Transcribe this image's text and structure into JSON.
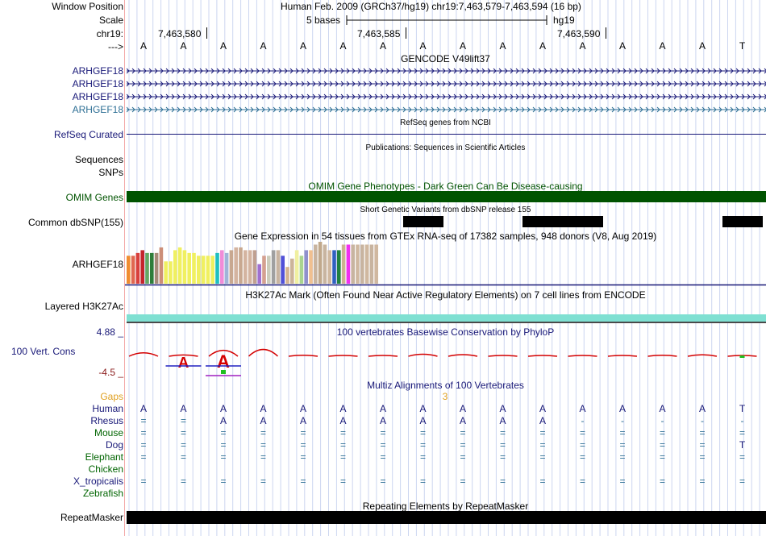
{
  "colors": {
    "navy": "#181878",
    "teal": "#2e6f95",
    "green": "#006400",
    "omim": "#005300",
    "orange": "#e0a020",
    "darkred": "#8a1a1a",
    "cyan": "#7fe0d2",
    "grid": "#ccd6f0",
    "red": "#d40000"
  },
  "header": {
    "position_label": "Window Position",
    "position_value": "Human Feb. 2009 (GRCh37/hg19)   chr19:7,463,579-7,463,594 (16 bp)",
    "scale_label": "Scale",
    "scale_text": "5 bases",
    "scale_db": "hg19",
    "chrom_label": "chr19:",
    "ticks": [
      "7,463,580",
      "7,463,585",
      "7,463,590"
    ],
    "strand_label": "--->",
    "bases": [
      "A",
      "A",
      "A",
      "A",
      "A",
      "A",
      "A",
      "A",
      "A",
      "A",
      "A",
      "A",
      "A",
      "A",
      "A",
      "T"
    ]
  },
  "tracks": {
    "gencode_title": "GENCODE V49lift37",
    "gencode_genes": [
      "ARHGEF18",
      "ARHGEF18",
      "ARHGEF18",
      "ARHGEF18"
    ],
    "refseq_title": "RefSeq genes from NCBI",
    "refseq_label": "RefSeq Curated",
    "pubs_title": "Publications: Sequences in Scientific Articles",
    "pubs_label": "Sequences",
    "snps_label": "SNPs",
    "omim_title": "OMIM Gene Phenotypes - Dark Green Can Be Disease-causing",
    "omim_label": "OMIM Genes",
    "dbsnp_title": "Short Genetic Variants from dbSNP release 155",
    "dbsnp_label": "Common dbSNP(155)",
    "gtex_title": "Gene Expression in 54 tissues from GTEx RNA-seq of 17382 samples, 948 donors (V8, Aug 2019)",
    "gtex_label": "ARHGEF18",
    "h3k_title": "H3K27Ac Mark (Often Found Near Active Regulatory Elements) on 7 cell lines from ENCODE",
    "h3k_label": "Layered H3K27Ac",
    "cons_title": "100 vertebrates Basewise Conservation by PhyloP",
    "cons_label": "100 Vert. Cons",
    "cons_max": "4.88 _",
    "cons_min": "-4.5 _",
    "multiz_title": "Multiz Alignments of 100 Vertebrates",
    "gaps_label": "Gaps",
    "gaps_value": "3",
    "repeat_title": "Repeating Elements by RepeatMasker",
    "repeat_label": "RepeatMasker"
  },
  "chart_data": {
    "type": "bar",
    "title": "Gene Expression in 54 tissues from GTEx RNA-seq of 17382 samples, 948 donors (V8, Aug 2019)",
    "values": [
      10,
      10,
      11,
      12,
      11,
      11,
      11,
      13,
      8,
      8,
      12,
      13,
      12,
      11,
      11,
      10,
      10,
      10,
      10,
      11,
      12,
      11,
      12,
      13,
      13,
      12,
      12,
      12,
      7,
      10,
      10,
      12,
      12,
      10,
      6,
      9,
      12,
      10,
      12,
      12,
      14,
      15,
      14,
      12,
      12,
      12,
      14,
      14,
      14,
      14,
      14,
      14,
      14,
      14
    ],
    "colors": [
      "#f08c30",
      "#e06850",
      "#d8403c",
      "#c4242c",
      "#64a864",
      "#2e7d3a",
      "#a58a78",
      "#cc8e78",
      "#f0f060",
      "#f0f060",
      "#f0f060",
      "#f0f060",
      "#f0f060",
      "#f0f060",
      "#f0f060",
      "#f0f060",
      "#f0f060",
      "#f0f060",
      "#f0f060",
      "#20c0c0",
      "#f08cd8",
      "#a0b4d8",
      "#c8a890",
      "#d4b4a0",
      "#c8a890",
      "#d4b4a0",
      "#d4b4a0",
      "#c0a090",
      "#a070d0",
      "#d4a090",
      "#ccccbb",
      "#a0a0a0",
      "#c8b4a0",
      "#5050d8",
      "#d4b490",
      "#ccb499",
      "#f0f0a0",
      "#aad490",
      "#9090cc",
      "#f0c090",
      "#c8b4a0",
      "#c0a88c",
      "#c8b4a0",
      "#d0b8a0",
      "#3060c0",
      "#208040",
      "#ccb490",
      "#f030f0",
      "#c8b4a0",
      "#d0b8a0",
      "#c8b4a0",
      "#d0b8a0",
      "#c8b4a0",
      "#d0b8a0"
    ]
  },
  "conservation": {
    "base_scores": [
      2.1,
      0.8,
      3.6,
      4.1,
      0.6,
      0.5,
      0.1,
      1.2,
      1.0,
      0.3,
      0.3,
      0.2,
      0.1,
      0.6,
      0.9,
      0.4
    ]
  },
  "dbsnp": {
    "variant_base_indices": [
      7,
      10,
      11,
      15
    ]
  },
  "multiz": {
    "species": [
      {
        "name": "Human",
        "color": "#181878",
        "row": [
          "A",
          "A",
          "A",
          "A",
          "A",
          "A",
          "A",
          "A",
          "A",
          "A",
          "A",
          "A",
          "A",
          "A",
          "A",
          "T"
        ]
      },
      {
        "name": "Rhesus",
        "color": "#181878",
        "row": [
          "=",
          "=",
          "A",
          "A",
          "A",
          "A",
          "A",
          "A",
          "A",
          "A",
          "A",
          "-",
          "-",
          "-",
          "-",
          "-"
        ]
      },
      {
        "name": "Mouse",
        "color": "#006400",
        "row": [
          "=",
          "=",
          "=",
          "=",
          "=",
          "=",
          "=",
          "=",
          "=",
          "=",
          "=",
          "=",
          "=",
          "=",
          "=",
          "="
        ]
      },
      {
        "name": "Dog",
        "color": "#181878",
        "row": [
          "=",
          "=",
          "=",
          "=",
          "=",
          "=",
          "=",
          "=",
          "=",
          "=",
          "=",
          "=",
          "=",
          "=",
          "=",
          "T"
        ]
      },
      {
        "name": "Elephant",
        "color": "#006400",
        "row": [
          "=",
          "=",
          "=",
          "=",
          "=",
          "=",
          "=",
          "=",
          "=",
          "=",
          "=",
          "=",
          "=",
          "=",
          "=",
          "="
        ]
      },
      {
        "name": "Chicken",
        "color": "#006400",
        "row": [
          "",
          "",
          "",
          "",
          "",
          "",
          "",
          "",
          "",
          "",
          "",
          "",
          "",
          "",
          "",
          ""
        ]
      },
      {
        "name": "X_tropicalis",
        "color": "#181878",
        "row": [
          "=",
          "=",
          "=",
          "=",
          "=",
          "=",
          "=",
          "=",
          "=",
          "=",
          "=",
          "=",
          "=",
          "=",
          "=",
          "="
        ]
      },
      {
        "name": "Zebrafish",
        "color": "#006400",
        "row": [
          "",
          "",
          "",
          "",
          "",
          "",
          "",
          "",
          "",
          "",
          "",
          "",
          "",
          "",
          "",
          ""
        ]
      }
    ]
  }
}
